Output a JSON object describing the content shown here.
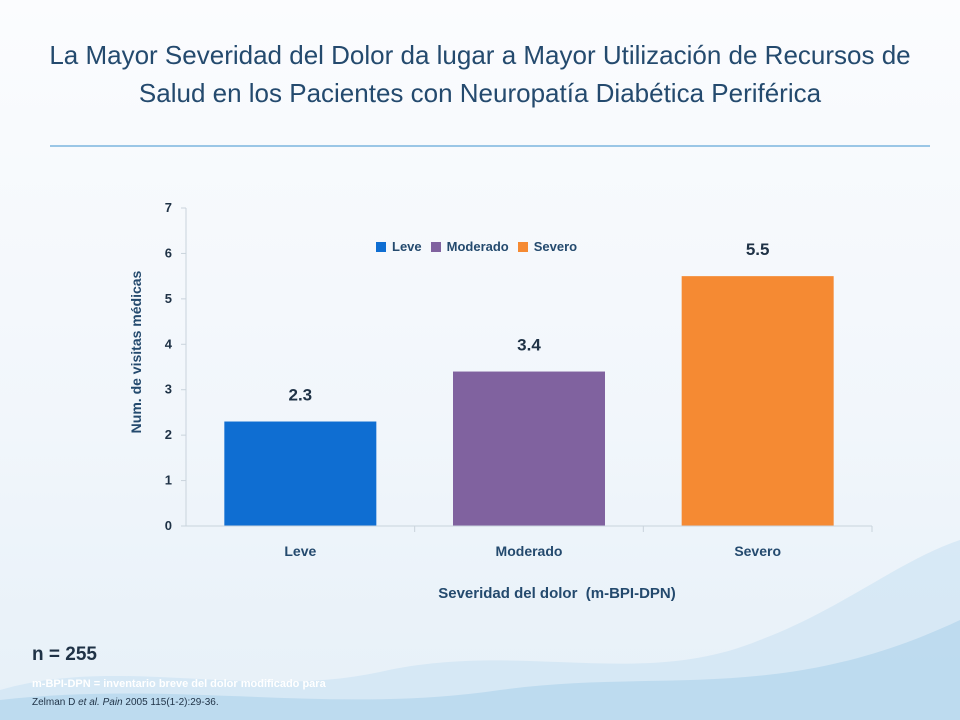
{
  "slide": {
    "title": "La Mayor Severidad del Dolor da lugar a Mayor Utilización de Recursos de Salud en los Pacientes con Neuropatía Diabética Periférica",
    "n_label": "n = 255",
    "footnote": "m-BPI-DPN = inventario breve del dolor modificado para",
    "citation_prefix": "Zelman D ",
    "citation_italic": "et al. Pain",
    "citation_suffix": " 2005 115(1-2):29-36."
  },
  "chart_data": {
    "type": "bar",
    "categories": [
      "Leve",
      "Moderado",
      "Severo"
    ],
    "values": [
      2.3,
      3.4,
      5.5
    ],
    "data_labels": [
      "2.3",
      "3.4",
      "5.5"
    ],
    "colors": [
      "#0f6ed2",
      "#80629f",
      "#f58a33"
    ],
    "legend": [
      "Leve",
      "Moderado",
      "Severo"
    ],
    "legend_position": "top-center",
    "xlabel": "Severidad del dolor  (m-BPI-DPN)",
    "ylabel": "Num. de visitas médicas",
    "ylim": [
      0,
      7
    ],
    "yticks": [
      "0",
      "1",
      "2",
      "3",
      "4",
      "5",
      "6",
      "7"
    ],
    "grid": false
  }
}
